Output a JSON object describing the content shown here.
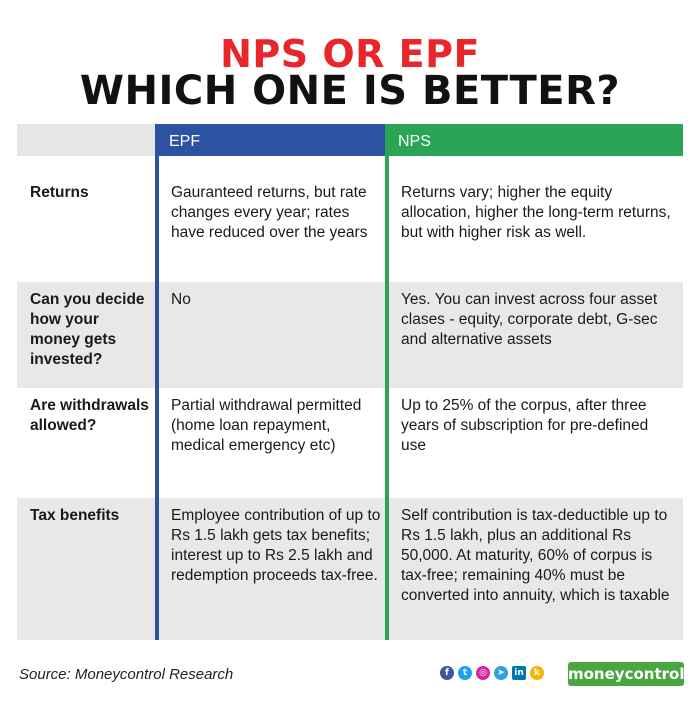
{
  "title": {
    "line1": "NPS OR EPF",
    "line2": "WHICH ONE IS BETTER?"
  },
  "columns": {
    "epf": "EPF",
    "nps": "NPS"
  },
  "rows": [
    {
      "label": "Returns",
      "epf": "Gauranteed returns, but rate changes every year; rates have reduced over the years",
      "nps": "Returns vary; higher the equity allocation, higher the long-term returns, but with higher risk as well."
    },
    {
      "label": "Can you decide how your money gets invested?",
      "epf": "No",
      "nps": "Yes. You can invest across four asset clases - equity, corporate debt, G-sec and alternative assets"
    },
    {
      "label": "Are withdrawals allowed?",
      "epf": "Partial withdrawal permitted (home loan repayment, medical emergency etc)",
      "nps": "Up to 25% of the corpus, after three years of subscription for pre-defined use"
    },
    {
      "label": "Tax benefits",
      "epf": "Employee contribution of up to Rs 1.5 lakh gets tax benefits; interest up to Rs 2.5 lakh and redemption proceeds tax-free.",
      "nps": "Self contribution is tax-deductible up to Rs 1.5 lakh, plus an additional Rs 50,000. At maturity, 60% of corpus is tax-free; remaining 40% must be converted into annuity, which is taxable"
    }
  ],
  "source": "Source: Moneycontrol Research",
  "social": {
    "icons": [
      "facebook-icon",
      "twitter-icon",
      "instagram-icon",
      "telegram-icon",
      "linkedin-icon",
      "koo-icon"
    ],
    "glyphs": [
      "f",
      "t",
      "◎",
      "➤",
      "in",
      "k"
    ],
    "colors": [
      "#3b5998",
      "#1da1f2",
      "#d6249f",
      "#2ca5e0",
      "#0077b5",
      "#f5b400"
    ]
  },
  "logo": "moneycontrol",
  "colors": {
    "title_red": "#e8262b",
    "epf_blue": "#2c53a1",
    "nps_green": "#2aa556",
    "row_shade": "#e8e8e8",
    "brand_green": "#4aa63f"
  }
}
